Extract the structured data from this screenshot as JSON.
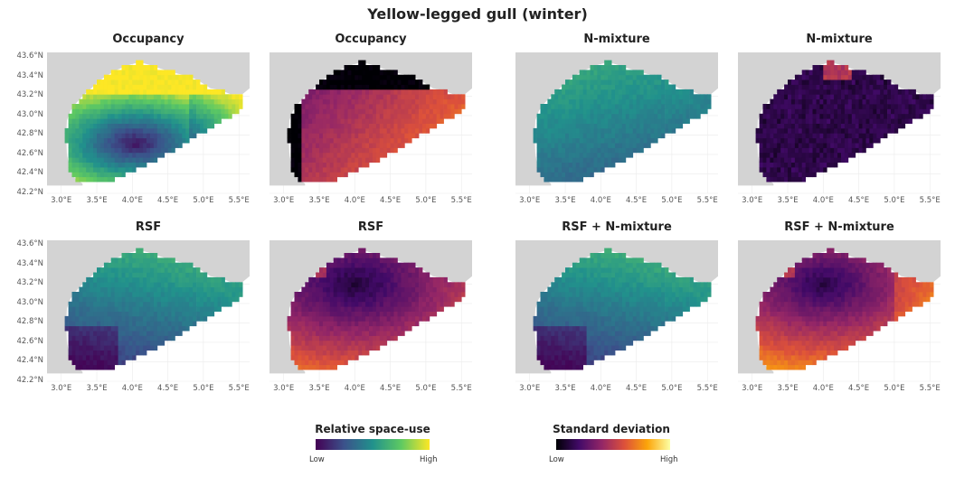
{
  "title": "Yellow-legged gull (winter)",
  "panels": [
    {
      "title": "Occupancy",
      "scale": "viridis",
      "pattern": "occ_mean"
    },
    {
      "title": "Occupancy",
      "scale": "inferno",
      "pattern": "occ_sd"
    },
    {
      "title": "N-mixture",
      "scale": "viridis",
      "pattern": "nmix_mean"
    },
    {
      "title": "N-mixture",
      "scale": "inferno",
      "pattern": "nmix_sd"
    },
    {
      "title": "RSF",
      "scale": "viridis",
      "pattern": "rsf_mean"
    },
    {
      "title": "RSF",
      "scale": "inferno",
      "pattern": "rsf_sd"
    },
    {
      "title": "RSF + N-mixture",
      "scale": "viridis",
      "pattern": "rsf_mean"
    },
    {
      "title": "RSF + N-mixture",
      "scale": "inferno",
      "pattern": "rsfn_sd"
    }
  ],
  "axes": {
    "lat_ticks": [
      "43.6°N",
      "43.4°N",
      "43.2°N",
      "43.0°N",
      "42.8°N",
      "42.6°N",
      "42.4°N",
      "42.2°N"
    ],
    "lon_ticks": [
      "3.0°E",
      "3.5°E",
      "4.0°E",
      "4.5°E",
      "5.0°E",
      "5.5°E"
    ],
    "lat_range": [
      42.2,
      43.65
    ],
    "lon_range": [
      2.8,
      5.65
    ]
  },
  "legends": {
    "mean": {
      "title": "Relative space-use",
      "low": "Low",
      "high": "High",
      "scale": "viridis"
    },
    "sd": {
      "title": "Standard deviation",
      "low": "Low",
      "high": "High",
      "scale": "inferno"
    }
  },
  "colors": {
    "land": "#d3d3d3",
    "sea_background": "#ffffff",
    "viridis": [
      "#440154",
      "#3b528b",
      "#21918c",
      "#5ec962",
      "#fde725"
    ],
    "inferno": [
      "#000004",
      "#420a68",
      "#932667",
      "#dd513a",
      "#fca50a",
      "#fcffa4"
    ]
  }
}
